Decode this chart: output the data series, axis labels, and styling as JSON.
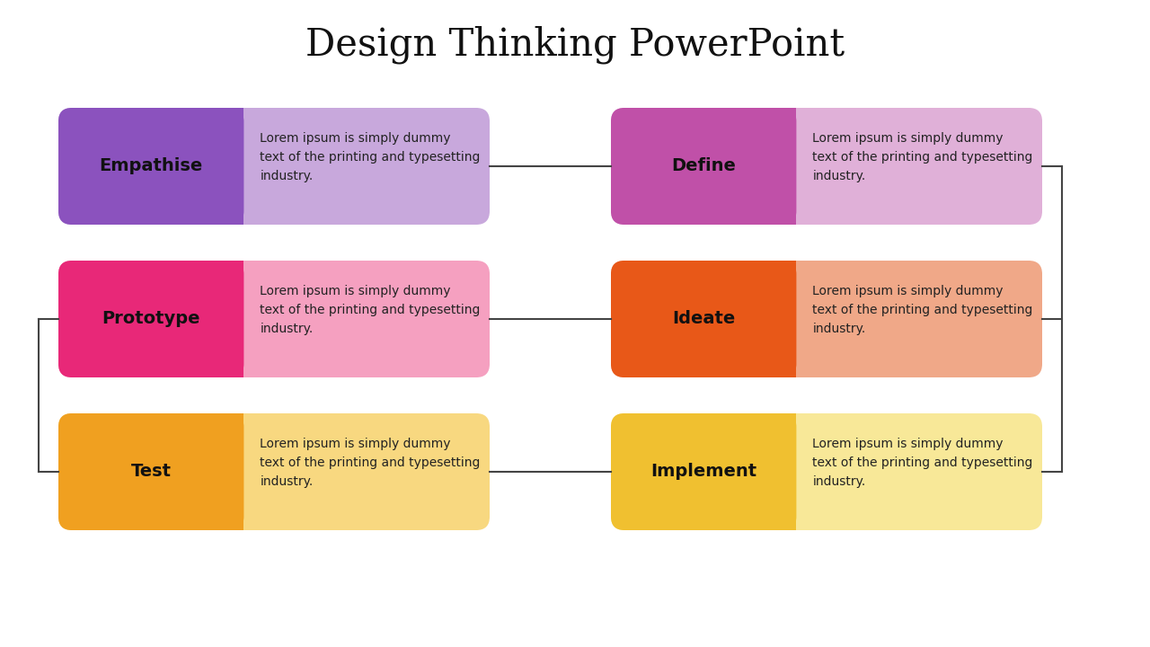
{
  "title": "Design Thinking PowerPoint",
  "title_fontsize": 30,
  "background_color": "#ffffff",
  "lorem_text": "Lorem ipsum is simply dummy\ntext of the printing and typesetting\nindustry.",
  "stages": [
    {
      "label": "Empathise",
      "label_color": "#8B52BE",
      "text_color": "#C8A8DC",
      "row": 0,
      "col": 0
    },
    {
      "label": "Define",
      "label_color": "#C050A8",
      "text_color": "#E0B0D8",
      "row": 0,
      "col": 1
    },
    {
      "label": "Prototype",
      "label_color": "#E82878",
      "text_color": "#F5A0C0",
      "row": 1,
      "col": 0
    },
    {
      "label": "Ideate",
      "label_color": "#E85818",
      "text_color": "#F0A888",
      "row": 1,
      "col": 1
    },
    {
      "label": "Test",
      "label_color": "#F0A020",
      "text_color": "#F8D880",
      "row": 2,
      "col": 0
    },
    {
      "label": "Implement",
      "label_color": "#F0C030",
      "text_color": "#F8E898",
      "row": 2,
      "col": 1
    }
  ],
  "connector_color": "#444444",
  "text_font_size": 10,
  "label_font_size": 14,
  "fig_width": 12.8,
  "fig_height": 7.2,
  "dpi": 100
}
